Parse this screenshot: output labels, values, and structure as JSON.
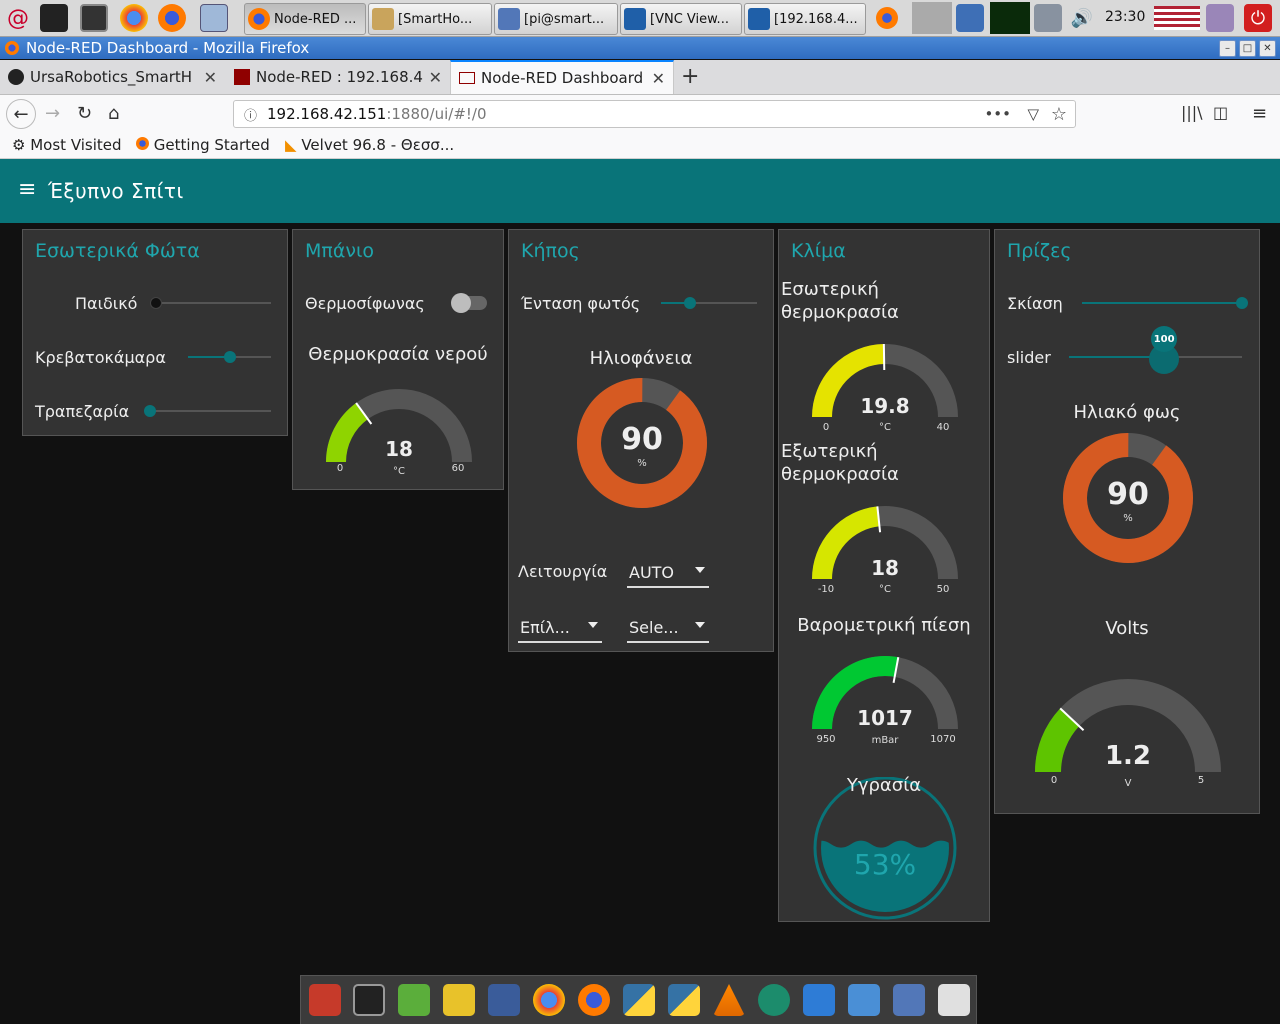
{
  "taskbar": {
    "tasks": [
      {
        "label": "Node-RED ..."
      },
      {
        "label": "[SmartHo..."
      },
      {
        "label": "[pi@smart..."
      },
      {
        "label": "[VNC View..."
      },
      {
        "label": "[192.168.4..."
      }
    ],
    "clock": "23:30"
  },
  "window": {
    "title": "Node-RED Dashboard - Mozilla Firefox"
  },
  "browser": {
    "tabs": [
      {
        "label": "UrsaRobotics_SmartH"
      },
      {
        "label": "Node-RED : 192.168.4"
      },
      {
        "label": "Node-RED Dashboard"
      }
    ],
    "url_host": "192.168.42.151",
    "url_rest": ":1880/ui/#!/0",
    "bookmarks": [
      {
        "label": "Most Visited"
      },
      {
        "label": "Getting Started"
      },
      {
        "label": "Velvet 96.8 - Θεσσ..."
      }
    ]
  },
  "dashboard": {
    "title": "Έξυπνο Σπίτι",
    "lights": {
      "title": "Εσωτερικά Φώτα",
      "items": [
        {
          "label": "Παιδικό",
          "value": 0
        },
        {
          "label": "Κρεβατοκάμαρα",
          "value": 0.5
        },
        {
          "label": "Τραπεζαρία",
          "value": 0
        }
      ]
    },
    "bathroom": {
      "title": "Μπάνιο",
      "switch_label": "Θερμοσίφωνας",
      "switch_on": false,
      "gauge": {
        "title": "Θερμοκρασία νερού",
        "value": "18",
        "unit": "°C",
        "min": "0",
        "max": "60",
        "num": 18,
        "lo": 0,
        "hi": 60,
        "color": "#8fd400"
      }
    },
    "garden": {
      "title": "Κήπος",
      "slider_label": "Ένταση φωτός",
      "slider_value": 0.3,
      "donut": {
        "title": "Ηλιοφάνεια",
        "value": "90",
        "unit": "%",
        "num": 90,
        "color": "#d65a22"
      },
      "mode_label": "Λειτουργία",
      "mode_value": "AUTO",
      "select1": "Επίλ...",
      "select2": "Sele..."
    },
    "climate": {
      "title": "Κλίμα",
      "indoor": {
        "title_line1": "Εσωτερική",
        "title_line2": "θερμοκρασία",
        "value": "19.8",
        "unit": "°C",
        "min": "0",
        "max": "40",
        "num": 19.8,
        "lo": 0,
        "hi": 40,
        "color": "#e5e300"
      },
      "outdoor": {
        "title_line1": "Εξωτερική",
        "title_line2": "θερμοκρασία",
        "value": "18",
        "unit": "°C",
        "min": "-10",
        "max": "50",
        "num": 18,
        "lo": -10,
        "hi": 50,
        "color": "#d6e600"
      },
      "pressure": {
        "title": "Βαρομετρική πίεση",
        "value": "1017",
        "unit": "mBar",
        "min": "950",
        "max": "1070",
        "num": 1017,
        "lo": 950,
        "hi": 1070,
        "color": "#00c832"
      },
      "humidity": {
        "title": "Υγρασία",
        "value": "53%",
        "num": 53
      }
    },
    "sockets": {
      "title": "Πρίζες",
      "shade_label": "Σκίαση",
      "shade_value": 1,
      "slider_label": "slider",
      "slider_value_text": "100",
      "slider_value": 0.55,
      "solar": {
        "title": "Ηλιακό φως",
        "value": "90",
        "unit": "%",
        "num": 90,
        "color": "#d65a22"
      },
      "volts": {
        "title": "Volts",
        "value": "1.2",
        "unit": "V",
        "min": "0",
        "max": "5",
        "num": 1.2,
        "lo": 0,
        "hi": 5,
        "color": "#5ec400"
      }
    }
  },
  "colors": {
    "accent": "#097479",
    "card": "#333333",
    "title": "#1fa6ad"
  }
}
